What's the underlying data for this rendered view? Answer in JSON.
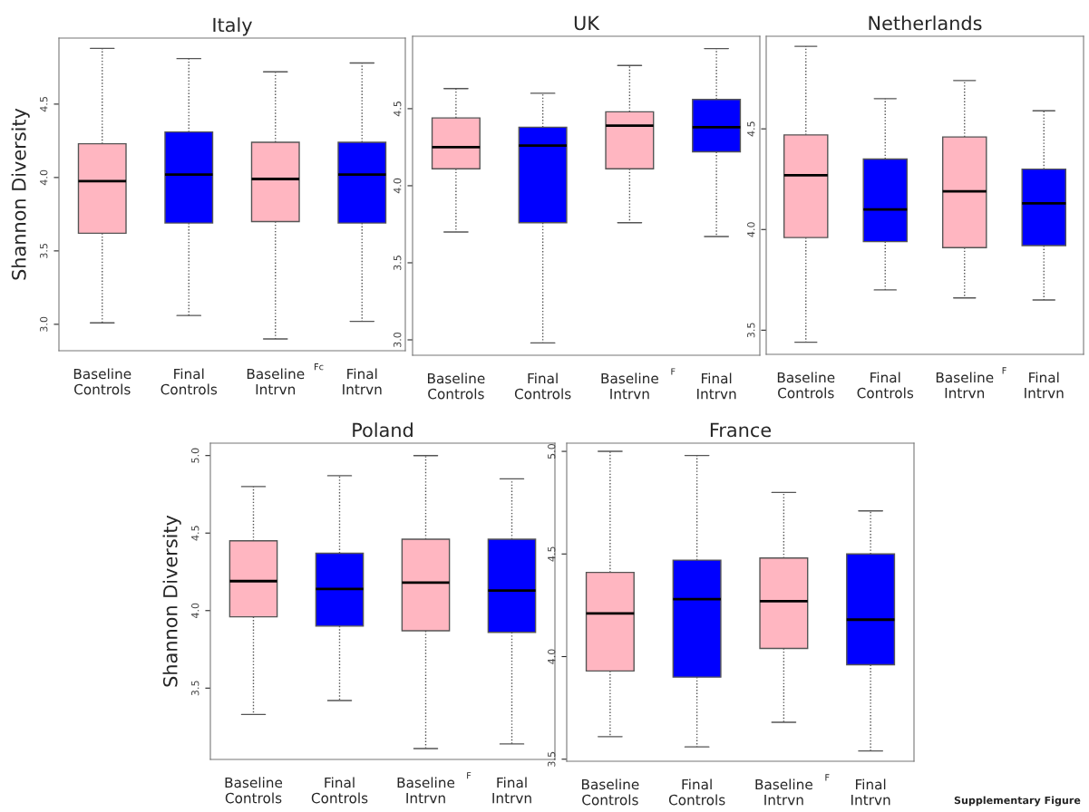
{
  "chart_data": [
    {
      "type": "box",
      "title": "Italy",
      "ylabel": "Shannon Diversity",
      "categories": [
        "Baseline\nControls",
        "Final\nControls",
        "Baseline\nIntrvn",
        "Final\nIntrvn"
      ],
      "colors": [
        "#ffb6c1",
        "#0000ff",
        "#ffb6c1",
        "#0000ff"
      ],
      "ylim": [
        2.82,
        4.95
      ],
      "yticks": [
        {
          "value": 3,
          "label": "3.0"
        },
        {
          "value": 3.5,
          "label": "3.5"
        },
        {
          "value": 4,
          "label": "4.0"
        },
        {
          "value": 4.5,
          "label": "4.5"
        }
      ],
      "annotations": [
        "Fc"
      ],
      "boxes": [
        {
          "low": 3.01,
          "q1": 3.62,
          "median": 3.975,
          "q3": 4.23,
          "high": 4.88
        },
        {
          "low": 3.06,
          "q1": 3.69,
          "median": 4.02,
          "q3": 4.31,
          "high": 4.81
        },
        {
          "low": 2.9,
          "q1": 3.7,
          "median": 3.99,
          "q3": 4.24,
          "high": 4.72
        },
        {
          "low": 3.02,
          "q1": 3.69,
          "median": 4.02,
          "q3": 4.24,
          "high": 4.78
        }
      ]
    },
    {
      "type": "box",
      "title": "UK",
      "categories": [
        "Baseline\nControls",
        "Final\nControls",
        "Baseline\nIntrvn",
        "Final\nIntrvn"
      ],
      "colors": [
        "#ffb6c1",
        "#0000ff",
        "#ffb6c1",
        "#0000ff"
      ],
      "ylim": [
        2.9,
        4.97
      ],
      "yticks": [
        {
          "value": 3,
          "label": "3.0"
        },
        {
          "value": 3.5,
          "label": "3.5"
        },
        {
          "value": 4,
          "label": "4.0"
        },
        {
          "value": 4.5,
          "label": "4.5"
        }
      ],
      "annotations": [
        "F"
      ],
      "boxes": [
        {
          "low": 3.7,
          "q1": 4.11,
          "median": 4.25,
          "q3": 4.44,
          "high": 4.63
        },
        {
          "low": 2.98,
          "q1": 3.76,
          "median": 4.26,
          "q3": 4.38,
          "high": 4.6
        },
        {
          "low": 3.76,
          "q1": 4.11,
          "median": 4.39,
          "q3": 4.48,
          "high": 4.78
        },
        {
          "low": 3.67,
          "q1": 4.22,
          "median": 4.38,
          "q3": 4.56,
          "high": 4.89
        }
      ]
    },
    {
      "type": "box",
      "title": "Netherlands",
      "categories": [
        "Baseline\nControls",
        "Final\nControls",
        "Baseline\nIntrvn",
        "Final\nIntrvn"
      ],
      "colors": [
        "#ffb6c1",
        "#0000ff",
        "#ffb6c1",
        "#0000ff"
      ],
      "ylim": [
        3.38,
        4.96
      ],
      "yticks": [
        {
          "value": 3.5,
          "label": "3.5"
        },
        {
          "value": 4,
          "label": "4.0"
        },
        {
          "value": 4.5,
          "label": "4.5"
        }
      ],
      "annotations": [
        "F"
      ],
      "boxes": [
        {
          "low": 3.44,
          "q1": 3.96,
          "median": 4.27,
          "q3": 4.47,
          "high": 4.91
        },
        {
          "low": 3.7,
          "q1": 3.94,
          "median": 4.1,
          "q3": 4.35,
          "high": 4.65
        },
        {
          "low": 3.66,
          "q1": 3.91,
          "median": 4.19,
          "q3": 4.46,
          "high": 4.74
        },
        {
          "low": 3.65,
          "q1": 3.92,
          "median": 4.13,
          "q3": 4.3,
          "high": 4.59
        }
      ]
    },
    {
      "type": "box",
      "title": "Poland",
      "ylabel": "Shannon Diversity",
      "categories": [
        "Baseline\nControls",
        "Final\nControls",
        "Baseline\nIntrvn",
        "Final\nIntrvn"
      ],
      "colors": [
        "#ffb6c1",
        "#0000ff",
        "#ffb6c1",
        "#0000ff"
      ],
      "ylim": [
        3.04,
        5.08
      ],
      "yticks": [
        {
          "value": 3.5,
          "label": "3.5"
        },
        {
          "value": 4,
          "label": "4.0"
        },
        {
          "value": 4.5,
          "label": "4.5"
        },
        {
          "value": 5,
          "label": "5.0"
        }
      ],
      "annotations": [
        "F"
      ],
      "boxes": [
        {
          "low": 3.33,
          "q1": 3.96,
          "median": 4.19,
          "q3": 4.45,
          "high": 4.8
        },
        {
          "low": 3.42,
          "q1": 3.9,
          "median": 4.14,
          "q3": 4.37,
          "high": 4.87
        },
        {
          "low": 3.11,
          "q1": 3.87,
          "median": 4.18,
          "q3": 4.46,
          "high": 5.0
        },
        {
          "low": 3.14,
          "q1": 3.86,
          "median": 4.13,
          "q3": 4.46,
          "high": 4.85
        }
      ]
    },
    {
      "type": "box",
      "title": "France",
      "categories": [
        "Baseline\nControls",
        "Final\nControls",
        "Baseline\nIntrvn",
        "Final\nIntrvn"
      ],
      "colors": [
        "#ffb6c1",
        "#0000ff",
        "#ffb6c1",
        "#0000ff"
      ],
      "ylim": [
        3.49,
        5.04
      ],
      "yticks": [
        {
          "value": 3.5,
          "label": "3.5"
        },
        {
          "value": 4,
          "label": "4.0"
        },
        {
          "value": 4.5,
          "label": "4.5"
        },
        {
          "value": 5,
          "label": "5.0"
        }
      ],
      "annotations": [
        "F",
        "Supplementary Figure"
      ],
      "boxes": [
        {
          "low": 3.61,
          "q1": 3.93,
          "median": 4.21,
          "q3": 4.41,
          "high": 5.0
        },
        {
          "low": 3.56,
          "q1": 3.9,
          "median": 4.28,
          "q3": 4.47,
          "high": 4.98
        },
        {
          "low": 3.68,
          "q1": 4.04,
          "median": 4.27,
          "q3": 4.48,
          "high": 4.8
        },
        {
          "low": 3.54,
          "q1": 3.96,
          "median": 4.18,
          "q3": 4.5,
          "high": 4.71
        }
      ]
    }
  ]
}
